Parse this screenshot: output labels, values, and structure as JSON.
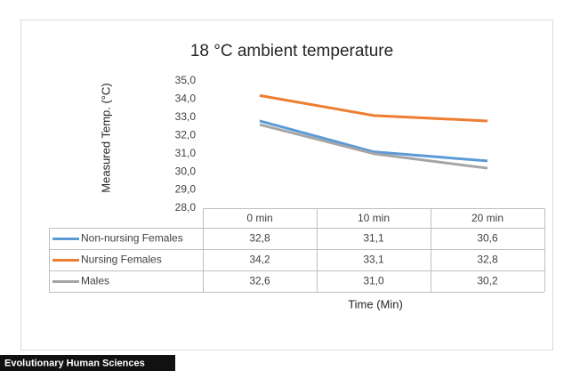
{
  "chart_data": {
    "type": "line",
    "title": "18 °C ambient temperature",
    "y_label": "Measured Temp. (°C)",
    "x_label": "Time (Min)",
    "categories": [
      "0 min",
      "10 min",
      "20 min"
    ],
    "series": [
      {
        "name": "Non-nursing Females",
        "color": "#5b9bd5",
        "values": [
          32.8,
          31.1,
          30.6
        ],
        "value_labels": [
          "32,8",
          "31,1",
          "30,6"
        ]
      },
      {
        "name": "Nursing Females",
        "color": "#ed7d31",
        "values": [
          34.2,
          33.1,
          32.8
        ],
        "value_labels": [
          "34,2",
          "33,1",
          "32,8"
        ]
      },
      {
        "name": "Males",
        "color": "#a5a5a5",
        "values": [
          32.6,
          31.0,
          30.2
        ],
        "value_labels": [
          "32,6",
          "31,0",
          "30,2"
        ]
      }
    ],
    "ylim": [
      28,
      35
    ],
    "yticks": [
      {
        "value": 28,
        "label": "28,0"
      },
      {
        "value": 29,
        "label": "29,0"
      },
      {
        "value": 30,
        "label": "30,0"
      },
      {
        "value": 31,
        "label": "31,0"
      },
      {
        "value": 32,
        "label": "32,0"
      },
      {
        "value": 33,
        "label": "33,0"
      },
      {
        "value": 34,
        "label": "34,0"
      },
      {
        "value": 35,
        "label": "35,0"
      }
    ],
    "grid": false,
    "credit": "Evolutionary Human Sciences"
  }
}
